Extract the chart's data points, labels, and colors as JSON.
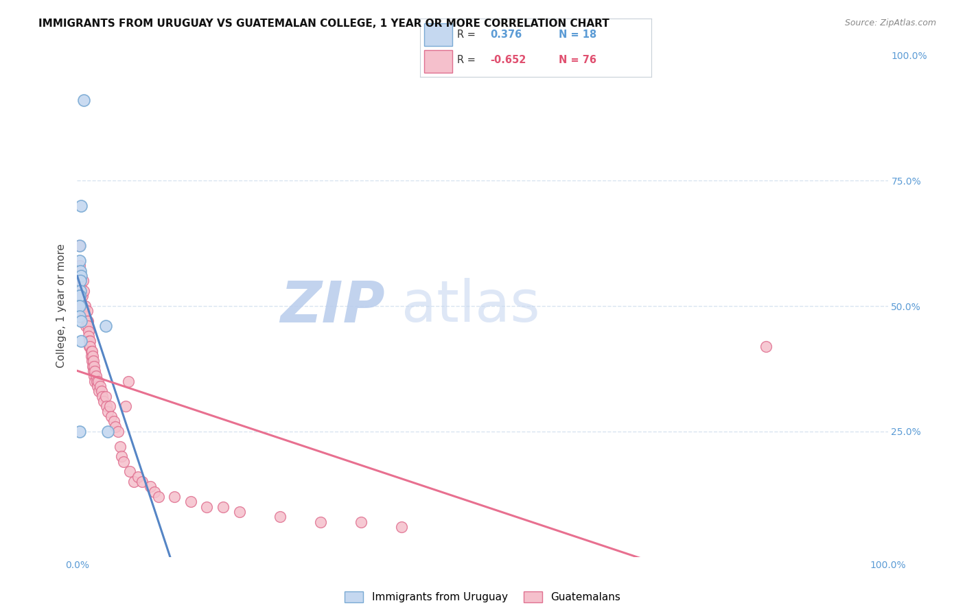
{
  "title": "IMMIGRANTS FROM URUGUAY VS GUATEMALAN COLLEGE, 1 YEAR OR MORE CORRELATION CHART",
  "source": "Source: ZipAtlas.com",
  "ylabel": "College, 1 year or more",
  "legend_label_blue": "Immigrants from Uruguay",
  "legend_label_pink": "Guatemalans",
  "blue_x": [
    0.5,
    0.3,
    0.3,
    0.4,
    0.5,
    0.4,
    0.4,
    0.3,
    0.3,
    0.2,
    0.3,
    0.3,
    3.5,
    0.5,
    0.3,
    3.8,
    0.8,
    0.5
  ],
  "blue_y": [
    0.7,
    0.62,
    0.59,
    0.57,
    0.56,
    0.55,
    0.53,
    0.52,
    0.52,
    0.5,
    0.5,
    0.48,
    0.46,
    0.43,
    0.25,
    0.25,
    0.91,
    0.47
  ],
  "pink_x": [
    0.2,
    0.3,
    0.3,
    0.4,
    0.5,
    0.5,
    0.6,
    0.7,
    0.8,
    0.8,
    0.9,
    1.0,
    1.0,
    1.1,
    1.2,
    1.2,
    1.3,
    1.3,
    1.4,
    1.4,
    1.5,
    1.5,
    1.6,
    1.6,
    1.7,
    1.7,
    1.8,
    1.8,
    1.9,
    1.9,
    2.0,
    2.0,
    2.1,
    2.1,
    2.2,
    2.2,
    2.3,
    2.4,
    2.5,
    2.6,
    2.7,
    2.8,
    3.0,
    3.1,
    3.3,
    3.5,
    3.6,
    3.8,
    4.0,
    4.2,
    4.5,
    4.7,
    5.0,
    5.3,
    5.5,
    5.7,
    6.0,
    6.3,
    6.5,
    7.0,
    7.5,
    8.0,
    9.0,
    9.5,
    10.0,
    12.0,
    14.0,
    16.0,
    18.0,
    20.0,
    25.0,
    30.0,
    35.0,
    40.0,
    85.0
  ],
  "pink_y": [
    0.62,
    0.58,
    0.55,
    0.54,
    0.52,
    0.5,
    0.52,
    0.55,
    0.48,
    0.53,
    0.49,
    0.5,
    0.48,
    0.46,
    0.49,
    0.47,
    0.47,
    0.46,
    0.45,
    0.44,
    0.43,
    0.42,
    0.43,
    0.42,
    0.41,
    0.4,
    0.41,
    0.39,
    0.4,
    0.38,
    0.39,
    0.37,
    0.38,
    0.36,
    0.37,
    0.35,
    0.36,
    0.35,
    0.34,
    0.35,
    0.33,
    0.34,
    0.33,
    0.32,
    0.31,
    0.32,
    0.3,
    0.29,
    0.3,
    0.28,
    0.27,
    0.26,
    0.25,
    0.22,
    0.2,
    0.19,
    0.3,
    0.35,
    0.17,
    0.15,
    0.16,
    0.15,
    0.14,
    0.13,
    0.12,
    0.12,
    0.11,
    0.1,
    0.1,
    0.09,
    0.08,
    0.07,
    0.07,
    0.06,
    0.42
  ],
  "background_color": "#ffffff",
  "plot_bg_color": "#ffffff",
  "grid_color": "#d8e4f0",
  "blue_marker_color": "#c5d8f0",
  "blue_marker_edge": "#7aaad4",
  "pink_marker_color": "#f5c0cc",
  "pink_marker_edge": "#e07090",
  "blue_line_color": "#5585c5",
  "pink_line_color": "#e87090",
  "dashed_line_color": "#a8c4e8",
  "title_color": "#111111",
  "source_color": "#888888",
  "axis_label_color": "#5b9bd5",
  "legend_r_color_blue": "#5b9bd5",
  "legend_r_color_pink": "#e05070"
}
